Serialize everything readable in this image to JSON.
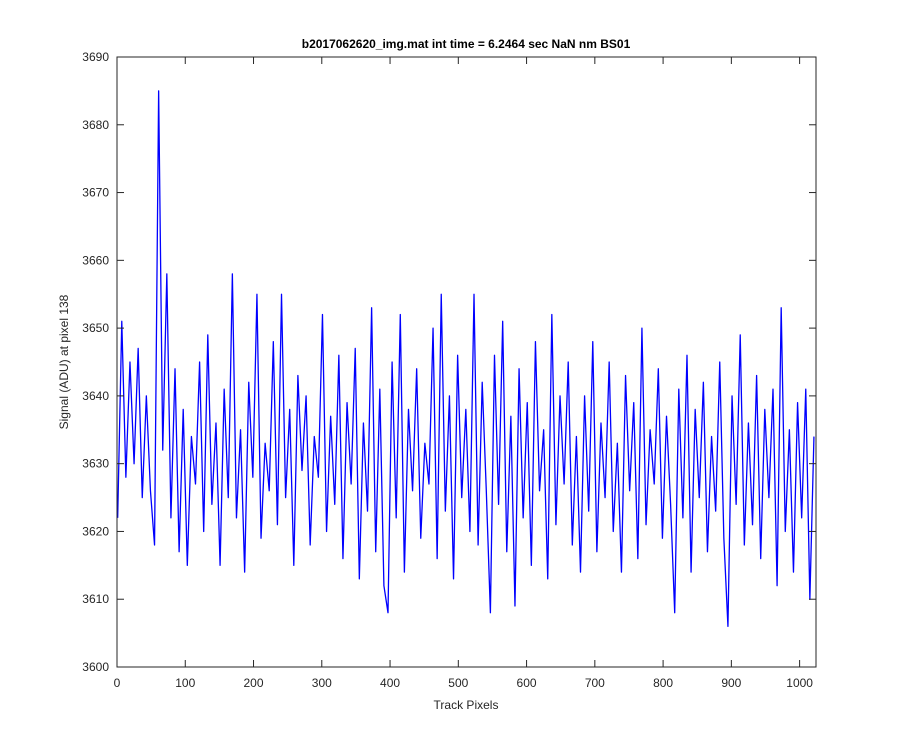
{
  "chart_data": {
    "type": "line",
    "title": "b2017062620_img.mat int time = 6.2464 sec  NaN nm BS01",
    "x_label": "Track Pixels",
    "y_label": "Signal (ADU) at pixel 138",
    "color": "#0000ff",
    "xlim": [
      0,
      1024
    ],
    "ylim": [
      3600,
      3690
    ],
    "xticks": [
      0,
      100,
      200,
      300,
      400,
      500,
      600,
      700,
      800,
      900,
      1000
    ],
    "yticks": [
      3600,
      3610,
      3620,
      3630,
      3640,
      3650,
      3660,
      3670,
      3680,
      3690
    ],
    "grid": false,
    "x": [
      1,
      7,
      13,
      19,
      25,
      31,
      37,
      43,
      49,
      55,
      61,
      67,
      73,
      79,
      85,
      91,
      97,
      103,
      109,
      115,
      121,
      127,
      133,
      139,
      145,
      151,
      157,
      163,
      169,
      175,
      181,
      187,
      193,
      199,
      205,
      211,
      217,
      223,
      229,
      235,
      241,
      247,
      253,
      259,
      265,
      271,
      277,
      283,
      289,
      295,
      301,
      307,
      313,
      319,
      325,
      331,
      337,
      343,
      349,
      355,
      361,
      367,
      373,
      379,
      385,
      391,
      397,
      403,
      409,
      415,
      421,
      427,
      433,
      439,
      445,
      451,
      457,
      463,
      469,
      475,
      481,
      487,
      493,
      499,
      505,
      511,
      517,
      523,
      529,
      535,
      541,
      547,
      553,
      559,
      565,
      571,
      577,
      583,
      589,
      595,
      601,
      607,
      613,
      619,
      625,
      631,
      637,
      643,
      649,
      655,
      661,
      667,
      673,
      679,
      685,
      691,
      697,
      703,
      709,
      715,
      721,
      727,
      733,
      739,
      745,
      751,
      757,
      763,
      769,
      775,
      781,
      787,
      793,
      799,
      805,
      811,
      817,
      823,
      829,
      835,
      841,
      847,
      853,
      859,
      865,
      871,
      877,
      883,
      889,
      895,
      901,
      907,
      913,
      919,
      925,
      931,
      937,
      943,
      949,
      955,
      961,
      967,
      973,
      979,
      985,
      991,
      997,
      1003,
      1009,
      1015,
      1021
    ],
    "values": [
      3622,
      3651,
      3628,
      3645,
      3630,
      3647,
      3625,
      3640,
      3626,
      3618,
      3685,
      3632,
      3658,
      3622,
      3644,
      3617,
      3638,
      3615,
      3634,
      3627,
      3645,
      3620,
      3649,
      3624,
      3636,
      3615,
      3641,
      3625,
      3658,
      3622,
      3635,
      3614,
      3642,
      3628,
      3655,
      3619,
      3633,
      3626,
      3648,
      3621,
      3655,
      3625,
      3638,
      3615,
      3643,
      3629,
      3640,
      3618,
      3634,
      3628,
      3652,
      3620,
      3637,
      3624,
      3646,
      3616,
      3639,
      3627,
      3647,
      3613,
      3636,
      3623,
      3653,
      3617,
      3641,
      3612,
      3608,
      3645,
      3622,
      3652,
      3614,
      3638,
      3626,
      3644,
      3619,
      3633,
      3627,
      3650,
      3616,
      3655,
      3623,
      3640,
      3613,
      3646,
      3625,
      3638,
      3620,
      3655,
      3618,
      3642,
      3626,
      3608,
      3646,
      3624,
      3651,
      3617,
      3637,
      3609,
      3644,
      3622,
      3639,
      3615,
      3648,
      3626,
      3635,
      3613,
      3652,
      3621,
      3640,
      3627,
      3645,
      3618,
      3634,
      3614,
      3640,
      3623,
      3648,
      3617,
      3636,
      3625,
      3645,
      3620,
      3633,
      3614,
      3643,
      3626,
      3639,
      3616,
      3650,
      3621,
      3635,
      3627,
      3644,
      3619,
      3637,
      3624,
      3608,
      3641,
      3622,
      3646,
      3614,
      3638,
      3625,
      3642,
      3617,
      3634,
      3623,
      3645,
      3619,
      3606,
      3640,
      3624,
      3649,
      3618,
      3636,
      3621,
      3643,
      3616,
      3638,
      3625,
      3641,
      3612,
      3653,
      3620,
      3635,
      3614,
      3639,
      3622,
      3641,
      3610,
      3634
    ]
  }
}
